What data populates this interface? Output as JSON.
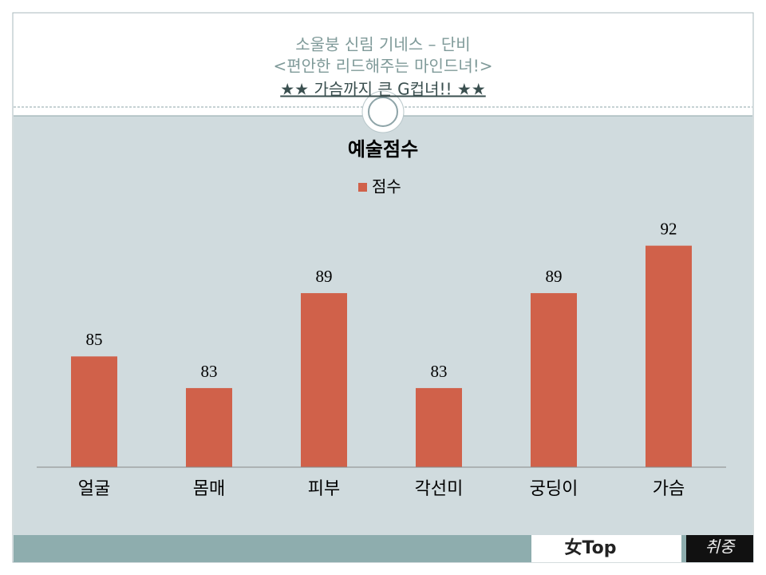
{
  "header": {
    "lines": [
      "소울붕 신림 기네스 – 단비",
      "<편안한 리드해주는 마인드녀!>",
      "★★ 가슴까지 큰 G컵녀!!  ★★"
    ]
  },
  "chart_data": {
    "type": "bar",
    "title": "예술점수",
    "categories": [
      "얼굴",
      "몸매",
      "피부",
      "각선미",
      "궁딩이",
      "가슴"
    ],
    "series": [
      {
        "name": "점수",
        "color": "#d0614a",
        "values": [
          85,
          83,
          89,
          83,
          89,
          92
        ]
      }
    ],
    "ylim": [
      78,
      94
    ],
    "legend": "top"
  },
  "footer": {
    "logos": [
      "女Top",
      "취중"
    ]
  }
}
